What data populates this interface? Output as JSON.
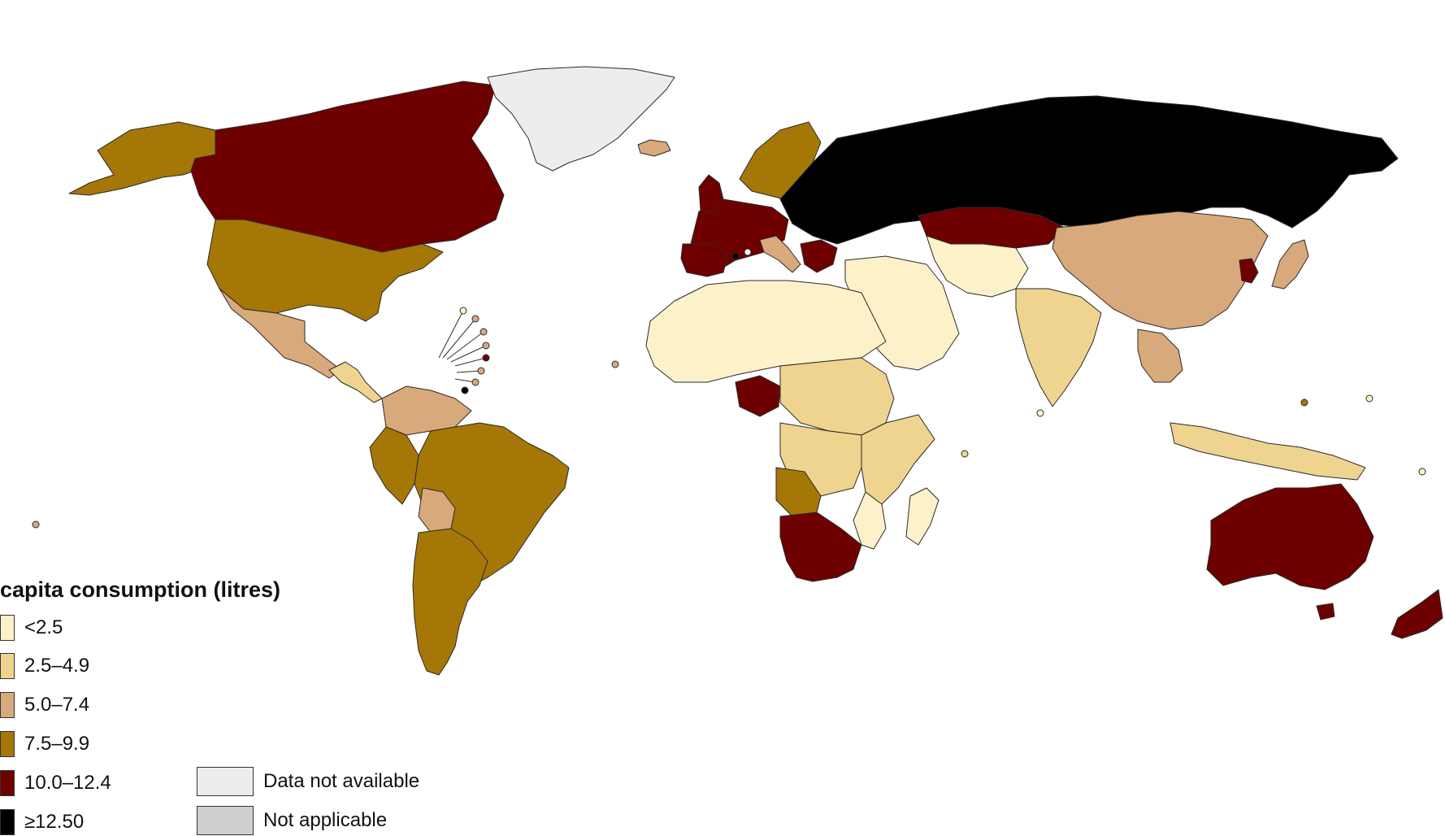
{
  "legend": {
    "title": "capita consumption (litres)",
    "classes": [
      {
        "label": "<2.5",
        "color": "#fdf1c9"
      },
      {
        "label": "2.5–4.9",
        "color": "#efd48f"
      },
      {
        "label": "5.0–7.4",
        "color": "#d8a97a"
      },
      {
        "label": "7.5–9.9",
        "color": "#a47707"
      },
      {
        "label": "10.0–12.4",
        "color": "#6e0000"
      },
      {
        "label": "≥12.50",
        "color": "#000000"
      }
    ],
    "extra": [
      {
        "label": "Data not available",
        "color": "#ededed"
      },
      {
        "label": "Not applicable",
        "color": "#cfcfcf"
      }
    ]
  }
}
